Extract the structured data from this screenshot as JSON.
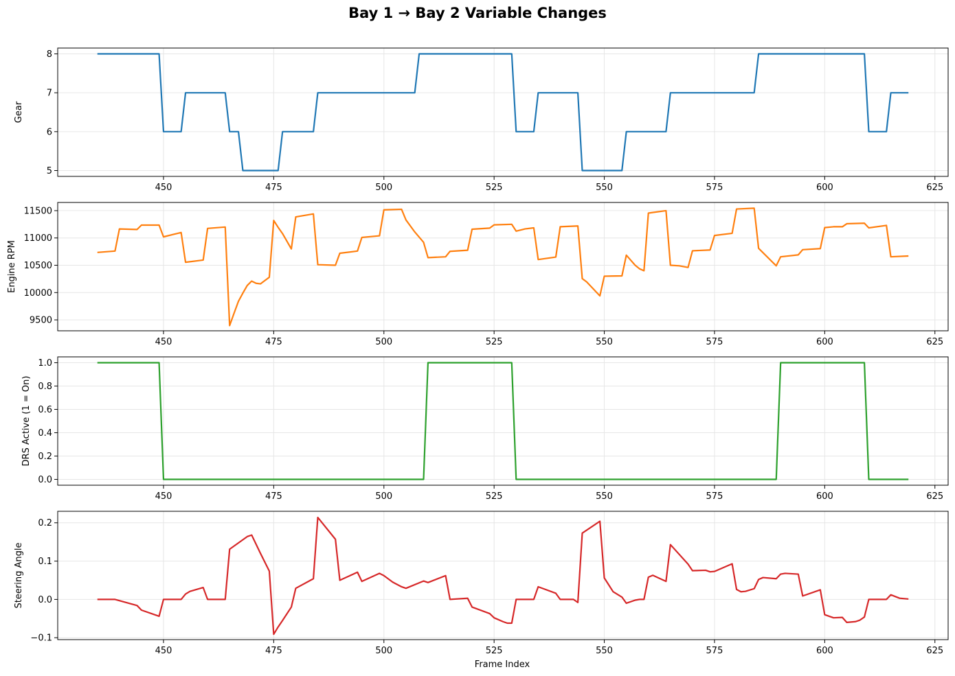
{
  "chart_data": {
    "type": "line",
    "title": "Bay 1 → Bay 2 Variable Changes",
    "xlabel": "Frame Index",
    "x_range": [
      435,
      619
    ],
    "xlim": [
      426,
      628
    ],
    "xticks": [
      450,
      475,
      500,
      525,
      550,
      575,
      600,
      625
    ],
    "grid": true,
    "panels": [
      {
        "ylabel": "Gear",
        "color": "#1f77b4",
        "ylim": [
          4.85,
          8.15
        ],
        "yticks": [
          5,
          6,
          7,
          8
        ],
        "ytick_labels": [
          "5",
          "6",
          "7",
          "8"
        ],
        "points": [
          [
            435,
            8
          ],
          [
            449,
            8
          ],
          [
            450,
            6
          ],
          [
            454,
            6
          ],
          [
            455,
            7
          ],
          [
            464,
            7
          ],
          [
            465,
            6
          ],
          [
            467,
            6
          ],
          [
            468,
            5
          ],
          [
            476,
            5
          ],
          [
            477,
            6
          ],
          [
            484,
            6
          ],
          [
            485,
            7
          ],
          [
            507,
            7
          ],
          [
            508,
            8
          ],
          [
            529,
            8
          ],
          [
            530,
            6
          ],
          [
            534,
            6
          ],
          [
            535,
            7
          ],
          [
            544,
            7
          ],
          [
            545,
            5
          ],
          [
            554,
            5
          ],
          [
            555,
            6
          ],
          [
            564,
            6
          ],
          [
            565,
            7
          ],
          [
            584,
            7
          ],
          [
            585,
            8
          ],
          [
            609,
            8
          ],
          [
            610,
            6
          ],
          [
            614,
            6
          ],
          [
            615,
            7
          ],
          [
            619,
            7
          ]
        ]
      },
      {
        "ylabel": "Engine RPM",
        "color": "#ff7f0e",
        "ylim": [
          9300,
          11650
        ],
        "yticks": [
          9500,
          10000,
          10500,
          11000,
          11500
        ],
        "ytick_labels": [
          "9500",
          "10000",
          "10500",
          "11000",
          "11500"
        ],
        "points": [
          [
            435,
            10735
          ],
          [
            439,
            10760
          ],
          [
            440,
            11165
          ],
          [
            444,
            11155
          ],
          [
            445,
            11235
          ],
          [
            449,
            11235
          ],
          [
            450,
            11020
          ],
          [
            454,
            11100
          ],
          [
            455,
            10555
          ],
          [
            459,
            10595
          ],
          [
            460,
            11175
          ],
          [
            464,
            11200
          ],
          [
            465,
            9395
          ],
          [
            466,
            9620
          ],
          [
            467,
            9840
          ],
          [
            468,
            9990
          ],
          [
            469,
            10130
          ],
          [
            470,
            10210
          ],
          [
            471,
            10170
          ],
          [
            472,
            10160
          ],
          [
            474,
            10280
          ],
          [
            475,
            11320
          ],
          [
            476,
            11195
          ],
          [
            477,
            11080
          ],
          [
            479,
            10800
          ],
          [
            480,
            11385
          ],
          [
            484,
            11440
          ],
          [
            485,
            10510
          ],
          [
            489,
            10500
          ],
          [
            490,
            10720
          ],
          [
            494,
            10760
          ],
          [
            495,
            11010
          ],
          [
            499,
            11040
          ],
          [
            500,
            11515
          ],
          [
            504,
            11525
          ],
          [
            505,
            11330
          ],
          [
            507,
            11110
          ],
          [
            509,
            10920
          ],
          [
            510,
            10640
          ],
          [
            514,
            10655
          ],
          [
            515,
            10755
          ],
          [
            519,
            10775
          ],
          [
            520,
            11160
          ],
          [
            524,
            11180
          ],
          [
            525,
            11240
          ],
          [
            529,
            11250
          ],
          [
            530,
            11125
          ],
          [
            532,
            11165
          ],
          [
            534,
            11185
          ],
          [
            535,
            10605
          ],
          [
            539,
            10650
          ],
          [
            540,
            11205
          ],
          [
            544,
            11220
          ],
          [
            545,
            10255
          ],
          [
            546,
            10195
          ],
          [
            549,
            9940
          ],
          [
            550,
            10300
          ],
          [
            554,
            10305
          ],
          [
            555,
            10685
          ],
          [
            557,
            10500
          ],
          [
            558,
            10435
          ],
          [
            559,
            10400
          ],
          [
            560,
            11455
          ],
          [
            564,
            11500
          ],
          [
            565,
            10500
          ],
          [
            567,
            10490
          ],
          [
            569,
            10460
          ],
          [
            570,
            10765
          ],
          [
            574,
            10780
          ],
          [
            575,
            11045
          ],
          [
            579,
            11085
          ],
          [
            580,
            11530
          ],
          [
            584,
            11545
          ],
          [
            585,
            10810
          ],
          [
            589,
            10490
          ],
          [
            590,
            10655
          ],
          [
            594,
            10690
          ],
          [
            595,
            10785
          ],
          [
            599,
            10805
          ],
          [
            600,
            11190
          ],
          [
            602,
            11205
          ],
          [
            604,
            11205
          ],
          [
            605,
            11260
          ],
          [
            609,
            11270
          ],
          [
            610,
            11185
          ],
          [
            614,
            11230
          ],
          [
            615,
            10655
          ],
          [
            619,
            10670
          ]
        ]
      },
      {
        "ylabel": "DRS Active (1 = On)",
        "color": "#2ca02c",
        "ylim": [
          -0.05,
          1.05
        ],
        "yticks": [
          0,
          0.2,
          0.4,
          0.6,
          0.8,
          1.0
        ],
        "ytick_labels": [
          "0.0",
          "0.2",
          "0.4",
          "0.6",
          "0.8",
          "1.0"
        ],
        "points": [
          [
            435,
            1
          ],
          [
            449,
            1
          ],
          [
            450,
            0
          ],
          [
            509,
            0
          ],
          [
            510,
            1
          ],
          [
            529,
            1
          ],
          [
            530,
            0
          ],
          [
            589,
            0
          ],
          [
            590,
            1
          ],
          [
            609,
            1
          ],
          [
            610,
            0
          ],
          [
            619,
            0
          ]
        ]
      },
      {
        "ylabel": "Steering Angle",
        "color": "#d62728",
        "ylim": [
          -0.105,
          0.23
        ],
        "yticks": [
          -0.1,
          0,
          0.1,
          0.2
        ],
        "ytick_labels": [
          "−0.1",
          "0.0",
          "0.1",
          "0.2"
        ],
        "points": [
          [
            435,
            0
          ],
          [
            439,
            0
          ],
          [
            444,
            -0.016
          ],
          [
            445,
            -0.028
          ],
          [
            449,
            -0.044
          ],
          [
            450,
            0
          ],
          [
            454,
            0
          ],
          [
            455,
            0.014
          ],
          [
            456,
            0.021
          ],
          [
            459,
            0.031
          ],
          [
            460,
            0
          ],
          [
            464,
            0
          ],
          [
            465,
            0.131
          ],
          [
            469,
            0.164
          ],
          [
            470,
            0.168
          ],
          [
            472,
            0.12
          ],
          [
            474,
            0.074
          ],
          [
            475,
            -0.091
          ],
          [
            476,
            -0.072
          ],
          [
            477,
            -0.055
          ],
          [
            479,
            -0.02
          ],
          [
            480,
            0.029
          ],
          [
            484,
            0.054
          ],
          [
            485,
            0.214
          ],
          [
            489,
            0.157
          ],
          [
            490,
            0.05
          ],
          [
            494,
            0.071
          ],
          [
            495,
            0.047
          ],
          [
            499,
            0.068
          ],
          [
            500,
            0.062
          ],
          [
            502,
            0.045
          ],
          [
            504,
            0.033
          ],
          [
            505,
            0.029
          ],
          [
            509,
            0.048
          ],
          [
            510,
            0.044
          ],
          [
            514,
            0.062
          ],
          [
            515,
            0
          ],
          [
            519,
            0.003
          ],
          [
            520,
            -0.02
          ],
          [
            524,
            -0.037
          ],
          [
            525,
            -0.048
          ],
          [
            527,
            -0.058
          ],
          [
            528,
            -0.062
          ],
          [
            529,
            -0.062
          ],
          [
            530,
            0
          ],
          [
            534,
            0
          ],
          [
            535,
            0.033
          ],
          [
            539,
            0.016
          ],
          [
            540,
            0
          ],
          [
            543,
            0
          ],
          [
            544,
            -0.008
          ],
          [
            545,
            0.173
          ],
          [
            549,
            0.204
          ],
          [
            550,
            0.056
          ],
          [
            552,
            0.02
          ],
          [
            554,
            0.006
          ],
          [
            555,
            -0.01
          ],
          [
            557,
            -0.002
          ],
          [
            558,
            0
          ],
          [
            559,
            0
          ],
          [
            560,
            0.058
          ],
          [
            561,
            0.063
          ],
          [
            564,
            0.047
          ],
          [
            565,
            0.143
          ],
          [
            569,
            0.092
          ],
          [
            570,
            0.075
          ],
          [
            573,
            0.076
          ],
          [
            574,
            0.072
          ],
          [
            575,
            0.073
          ],
          [
            579,
            0.093
          ],
          [
            580,
            0.026
          ],
          [
            581,
            0.02
          ],
          [
            582,
            0.021
          ],
          [
            584,
            0.028
          ],
          [
            585,
            0.052
          ],
          [
            586,
            0.057
          ],
          [
            589,
            0.054
          ],
          [
            590,
            0.066
          ],
          [
            591,
            0.068
          ],
          [
            594,
            0.066
          ],
          [
            595,
            0.009
          ],
          [
            599,
            0.025
          ],
          [
            600,
            -0.04
          ],
          [
            602,
            -0.048
          ],
          [
            604,
            -0.047
          ],
          [
            605,
            -0.06
          ],
          [
            607,
            -0.058
          ],
          [
            608,
            -0.054
          ],
          [
            609,
            -0.046
          ],
          [
            610,
            0
          ],
          [
            614,
            0
          ],
          [
            615,
            0.012
          ],
          [
            617,
            0.003
          ],
          [
            619,
            0.001
          ]
        ]
      }
    ]
  }
}
